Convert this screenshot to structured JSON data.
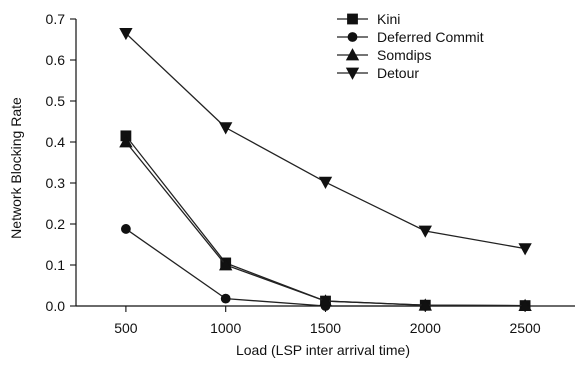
{
  "chart_data": {
    "type": "line",
    "title": "",
    "xlabel": "Load (LSP inter arrival time)",
    "ylabel": "Network Blocking Rate",
    "x": [
      500,
      1000,
      1500,
      2000,
      2500
    ],
    "xlim": [
      250,
      2750
    ],
    "ylim": [
      0,
      0.7
    ],
    "x_ticks": [
      500,
      1000,
      1500,
      2000,
      2500
    ],
    "x_tick_labels": [
      "500",
      "1000",
      "1500",
      "2000",
      "2500"
    ],
    "y_ticks": [
      0,
      0.1,
      0.2,
      0.3,
      0.4,
      0.5,
      0.6,
      0.7
    ],
    "y_tick_labels": [
      "0.0",
      "0.1",
      "0.2",
      "0.3",
      "0.4",
      "0.5",
      "0.6",
      "0.7"
    ],
    "grid": false,
    "legend_position": "top-right",
    "series": [
      {
        "name": "Kini",
        "marker": "square",
        "values": [
          0.415,
          0.105,
          0.012,
          0.002,
          0.001
        ]
      },
      {
        "name": "Deferred Commit",
        "marker": "circle",
        "values": [
          0.188,
          0.018,
          0.0,
          0.0,
          0.0
        ]
      },
      {
        "name": "Somdips",
        "marker": "triangle-up",
        "values": [
          0.4,
          0.1,
          0.012,
          0.002,
          0.001
        ]
      },
      {
        "name": "Detour",
        "marker": "triangle-down",
        "values": [
          0.665,
          0.435,
          0.302,
          0.183,
          0.14
        ]
      }
    ]
  }
}
